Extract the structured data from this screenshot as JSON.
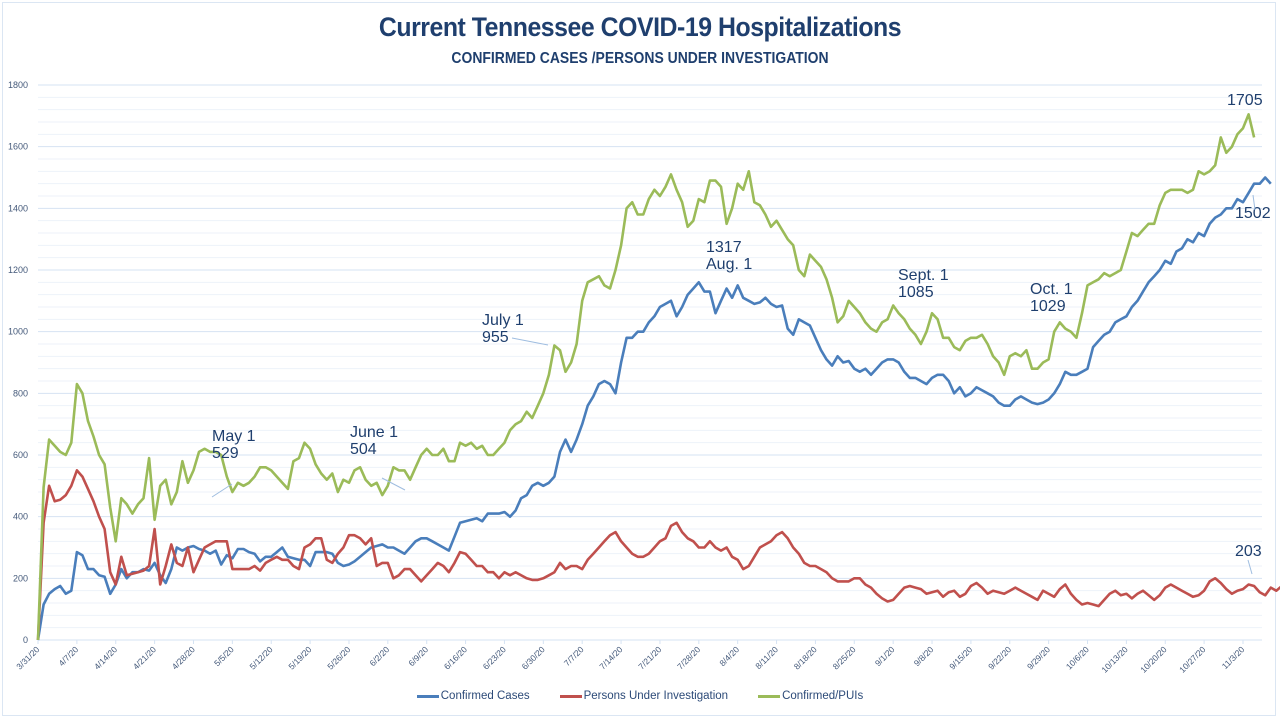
{
  "chart_data": {
    "type": "line",
    "title": "Current Tennessee COVID-19 Hospitalizations",
    "subtitle": "CONFIRMED CASES /PERSONS UNDER INVESTIGATION",
    "xlabel": "",
    "ylabel": "",
    "ylim": [
      0,
      1800
    ],
    "yticks": [
      0,
      200,
      400,
      600,
      800,
      1000,
      1200,
      1400,
      1600,
      1800
    ],
    "grid": true,
    "legend_position": "bottom",
    "start_date": "3/31/20",
    "xtick_labels": [
      "3/31/20",
      "4/7/20",
      "4/14/20",
      "4/21/20",
      "4/28/20",
      "5/5/20",
      "5/12/20",
      "5/19/20",
      "5/26/20",
      "6/2/20",
      "6/9/20",
      "6/16/20",
      "6/23/20",
      "6/30/20",
      "7/7/20",
      "7/14/20",
      "7/21/20",
      "7/28/20",
      "8/4/20",
      "8/11/20",
      "8/18/20",
      "8/25/20",
      "9/1/20",
      "9/8/20",
      "9/15/20",
      "9/22/20",
      "9/29/20",
      "10/6/20",
      "10/13/20",
      "10/20/20",
      "10/27/20",
      "11/3/20"
    ],
    "series": [
      {
        "name": "Confirmed Cases",
        "color": "#4a7ebb",
        "values": [
          0,
          115,
          150,
          165,
          175,
          150,
          160,
          285,
          275,
          230,
          230,
          210,
          205,
          150,
          180,
          230,
          200,
          220,
          220,
          230,
          225,
          250,
          210,
          185,
          230,
          300,
          290,
          300,
          305,
          295,
          290,
          280,
          290,
          245,
          275,
          265,
          295,
          295,
          285,
          280,
          255,
          270,
          270,
          285,
          300,
          270,
          265,
          260,
          260,
          240,
          285,
          285,
          285,
          280,
          250,
          240,
          245,
          255,
          270,
          285,
          300,
          305,
          310,
          300,
          300,
          290,
          280,
          300,
          320,
          330,
          330,
          320,
          310,
          300,
          290,
          335,
          380,
          385,
          390,
          395,
          385,
          410,
          410,
          410,
          415,
          400,
          420,
          460,
          470,
          500,
          510,
          500,
          510,
          530,
          610,
          650,
          610,
          650,
          700,
          760,
          790,
          830,
          840,
          830,
          800,
          900,
          980,
          980,
          1000,
          1000,
          1030,
          1050,
          1080,
          1090,
          1100,
          1050,
          1080,
          1120,
          1140,
          1160,
          1130,
          1130,
          1060,
          1100,
          1140,
          1110,
          1150,
          1110,
          1100,
          1090,
          1095,
          1110,
          1090,
          1080,
          1085,
          1010,
          990,
          1040,
          1030,
          1020,
          980,
          940,
          910,
          890,
          920,
          900,
          905,
          880,
          870,
          880,
          860,
          880,
          900,
          910,
          910,
          900,
          870,
          850,
          850,
          840,
          830,
          850,
          860,
          860,
          840,
          800,
          820,
          790,
          800,
          820,
          810,
          800,
          790,
          770,
          760,
          760,
          780,
          790,
          780,
          770,
          765,
          770,
          780,
          800,
          830,
          870,
          860,
          860,
          870,
          880,
          950,
          970,
          990,
          1000,
          1030,
          1040,
          1050,
          1080,
          1100,
          1130,
          1160,
          1180,
          1200,
          1230,
          1220,
          1260,
          1270,
          1300,
          1290,
          1320,
          1310,
          1350,
          1370,
          1380,
          1400,
          1400,
          1430,
          1420,
          1450,
          1480,
          1480,
          1500,
          1480
        ]
      },
      {
        "name": "Persons Under Investigation",
        "color": "#c0504d",
        "values": [
          0,
          380,
          500,
          450,
          455,
          470,
          500,
          550,
          530,
          490,
          450,
          400,
          360,
          220,
          180,
          270,
          210,
          215,
          220,
          225,
          240,
          360,
          180,
          240,
          310,
          250,
          240,
          300,
          220,
          260,
          300,
          310,
          320,
          320,
          320,
          230,
          230,
          230,
          230,
          240,
          225,
          250,
          260,
          270,
          260,
          260,
          240,
          230,
          300,
          310,
          330,
          330,
          260,
          250,
          280,
          300,
          340,
          340,
          330,
          310,
          330,
          240,
          250,
          250,
          200,
          210,
          230,
          230,
          210,
          190,
          210,
          230,
          250,
          240,
          220,
          250,
          285,
          280,
          260,
          240,
          240,
          220,
          220,
          200,
          220,
          210,
          220,
          210,
          200,
          195,
          195,
          200,
          210,
          220,
          250,
          230,
          240,
          240,
          230,
          260,
          280,
          300,
          320,
          340,
          350,
          320,
          300,
          280,
          270,
          270,
          280,
          300,
          320,
          330,
          370,
          380,
          350,
          330,
          320,
          300,
          300,
          320,
          300,
          290,
          300,
          270,
          260,
          230,
          240,
          270,
          300,
          310,
          320,
          340,
          350,
          330,
          300,
          280,
          250,
          240,
          240,
          230,
          220,
          200,
          190,
          190,
          190,
          200,
          200,
          180,
          170,
          150,
          135,
          125,
          130,
          150,
          170,
          175,
          170,
          165,
          150,
          155,
          160,
          140,
          155,
          160,
          140,
          150,
          175,
          185,
          170,
          150,
          160,
          155,
          150,
          160,
          170,
          160,
          150,
          140,
          130,
          160,
          150,
          140,
          165,
          180,
          150,
          130,
          115,
          120,
          115,
          110,
          130,
          150,
          160,
          145,
          150,
          135,
          150,
          160,
          145,
          130,
          145,
          170,
          180,
          170,
          160,
          150,
          140,
          145,
          160,
          190,
          200,
          185,
          165,
          150,
          160,
          165,
          180,
          175,
          155,
          145,
          170,
          160,
          175,
          165,
          160,
          155,
          150,
          160,
          175,
          190,
          160,
          150,
          200,
          205,
          145
        ]
      },
      {
        "name": "Confirmed/PUIs",
        "color": "#9bbb59",
        "values": [
          0,
          495,
          650,
          630,
          610,
          600,
          640,
          830,
          800,
          710,
          660,
          600,
          570,
          430,
          320,
          460,
          440,
          410,
          440,
          460,
          590,
          390,
          500,
          520,
          440,
          480,
          580,
          510,
          550,
          610,
          620,
          610,
          610,
          600,
          530,
          480,
          510,
          500,
          510,
          530,
          560,
          560,
          550,
          530,
          510,
          490,
          580,
          590,
          640,
          620,
          570,
          540,
          520,
          540,
          480,
          520,
          510,
          550,
          560,
          520,
          500,
          510,
          470,
          500,
          560,
          550,
          550,
          520,
          560,
          600,
          620,
          600,
          600,
          620,
          580,
          580,
          640,
          630,
          640,
          620,
          630,
          600,
          600,
          620,
          640,
          680,
          700,
          710,
          740,
          720,
          760,
          800,
          860,
          955,
          940,
          870,
          900,
          960,
          1100,
          1160,
          1170,
          1180,
          1150,
          1140,
          1200,
          1280,
          1400,
          1420,
          1380,
          1380,
          1430,
          1460,
          1440,
          1470,
          1510,
          1460,
          1420,
          1340,
          1360,
          1430,
          1420,
          1490,
          1490,
          1470,
          1350,
          1400,
          1480,
          1460,
          1520,
          1420,
          1410,
          1380,
          1340,
          1360,
          1330,
          1300,
          1280,
          1200,
          1180,
          1250,
          1230,
          1210,
          1170,
          1110,
          1030,
          1050,
          1100,
          1080,
          1060,
          1030,
          1010,
          1000,
          1030,
          1040,
          1085,
          1060,
          1040,
          1010,
          990,
          960,
          1000,
          1060,
          1040,
          980,
          980,
          950,
          940,
          970,
          980,
          980,
          990,
          960,
          920,
          900,
          860,
          920,
          930,
          920,
          940,
          880,
          880,
          900,
          910,
          1000,
          1030,
          1010,
          1000,
          980,
          1060,
          1150,
          1160,
          1170,
          1190,
          1180,
          1190,
          1200,
          1260,
          1320,
          1310,
          1330,
          1350,
          1350,
          1410,
          1450,
          1460,
          1460,
          1460,
          1450,
          1460,
          1520,
          1510,
          1520,
          1540,
          1630,
          1580,
          1600,
          1640,
          1660,
          1705,
          1630
        ]
      }
    ],
    "annotations": [
      {
        "text": "May 1\n529",
        "series": "Confirmed/PUIs",
        "date": "5/1/20",
        "value": 529
      },
      {
        "text": "June 1\n504",
        "series": "Confirmed/PUIs",
        "date": "6/1/20",
        "value": 504
      },
      {
        "text": "July 1\n955",
        "series": "Confirmed/PUIs",
        "date": "7/1/20",
        "value": 955
      },
      {
        "text": "1317\nAug. 1",
        "series": "Confirmed/PUIs",
        "date": "8/1/20",
        "value": 1317
      },
      {
        "text": "Sept. 1\n1085",
        "series": "Confirmed/PUIs",
        "date": "9/1/20",
        "value": 1085
      },
      {
        "text": "Oct. 1\n1029",
        "series": "Confirmed/PUIs",
        "date": "10/1/20",
        "value": 1029
      },
      {
        "text": "1705",
        "series": "Confirmed/PUIs",
        "date": "11/5/20",
        "value": 1705
      },
      {
        "text": "1502",
        "series": "Confirmed Cases",
        "date": "11/5/20",
        "value": 1502
      },
      {
        "text": "203",
        "series": "Persons Under Investigation",
        "date": "11/5/20",
        "value": 203
      }
    ]
  },
  "legend": {
    "items": [
      "Confirmed Cases",
      "Persons Under Investigation",
      "Confirmed/PUIs"
    ]
  }
}
